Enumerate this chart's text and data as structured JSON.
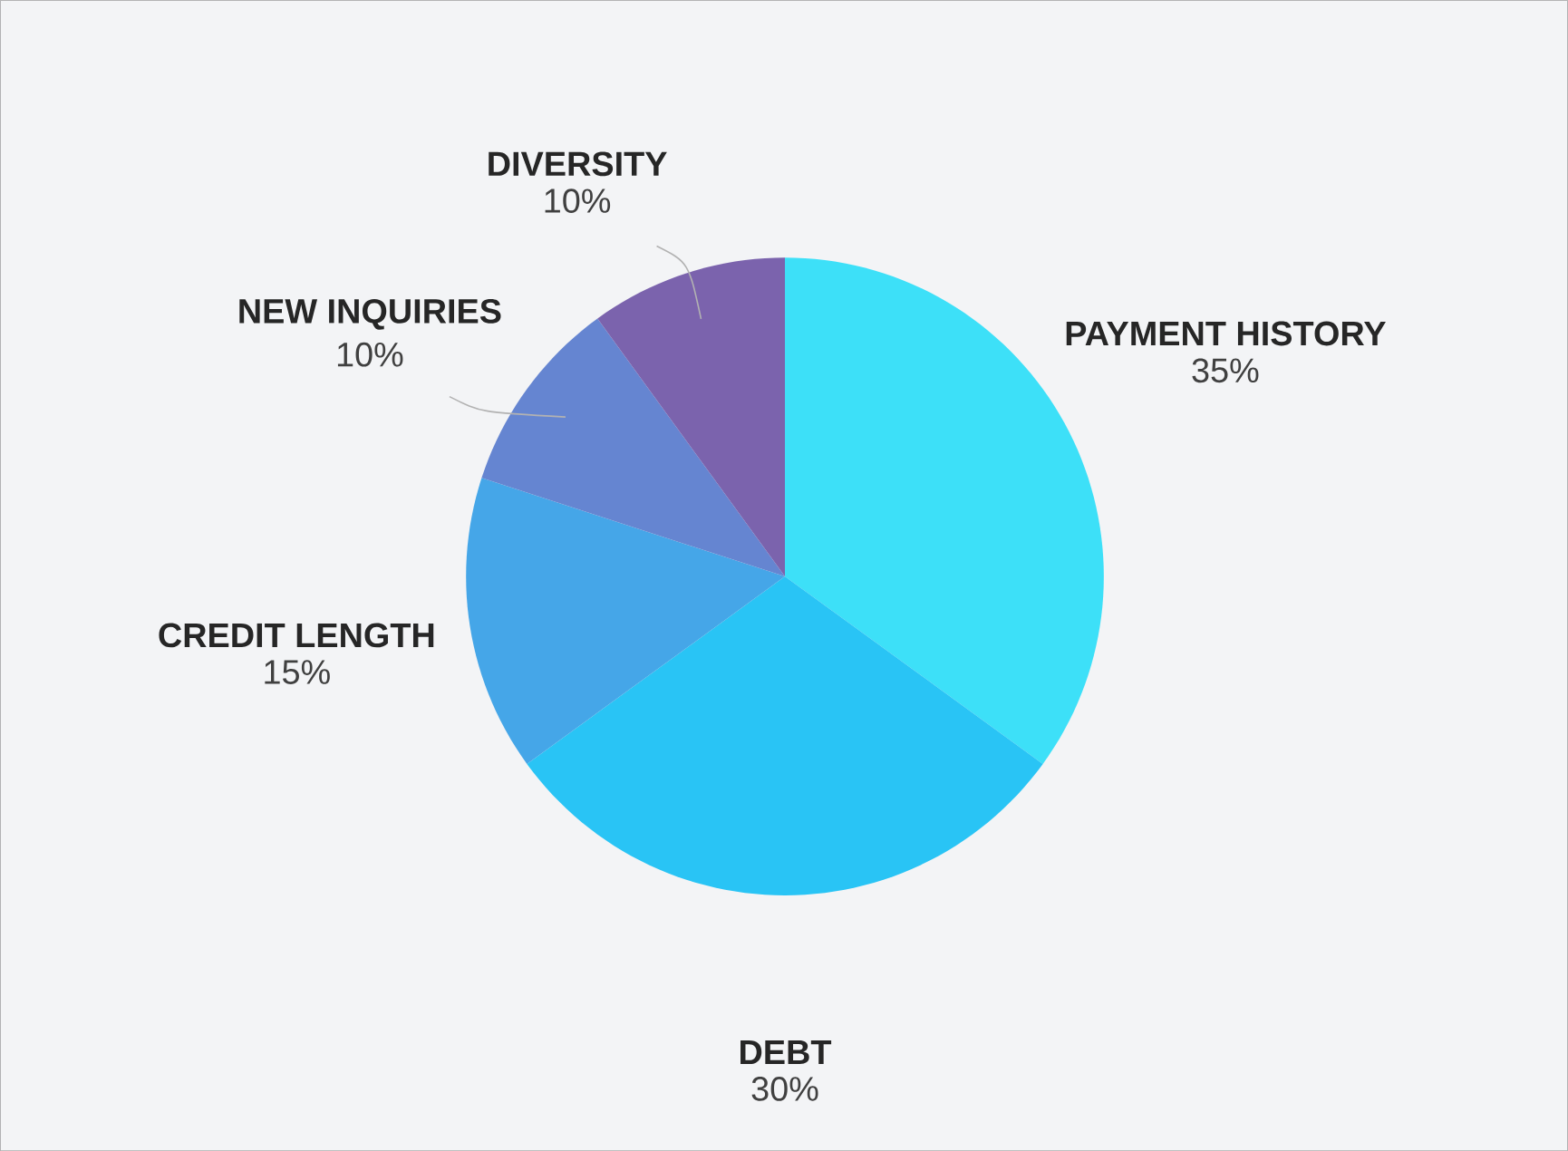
{
  "chart_data": {
    "type": "pie",
    "categories": [
      "PAYMENT HISTORY",
      "DEBT",
      "CREDIT LENGTH",
      "NEW INQUIRIES",
      "DIVERSITY"
    ],
    "values": [
      35,
      30,
      15,
      10,
      10
    ],
    "colors": [
      "#3de0f8",
      "#29c4f5",
      "#45a6e8",
      "#6585d1",
      "#7b63ad"
    ],
    "value_labels": [
      "35%",
      "30%",
      "15%",
      "10%",
      "10%"
    ]
  }
}
